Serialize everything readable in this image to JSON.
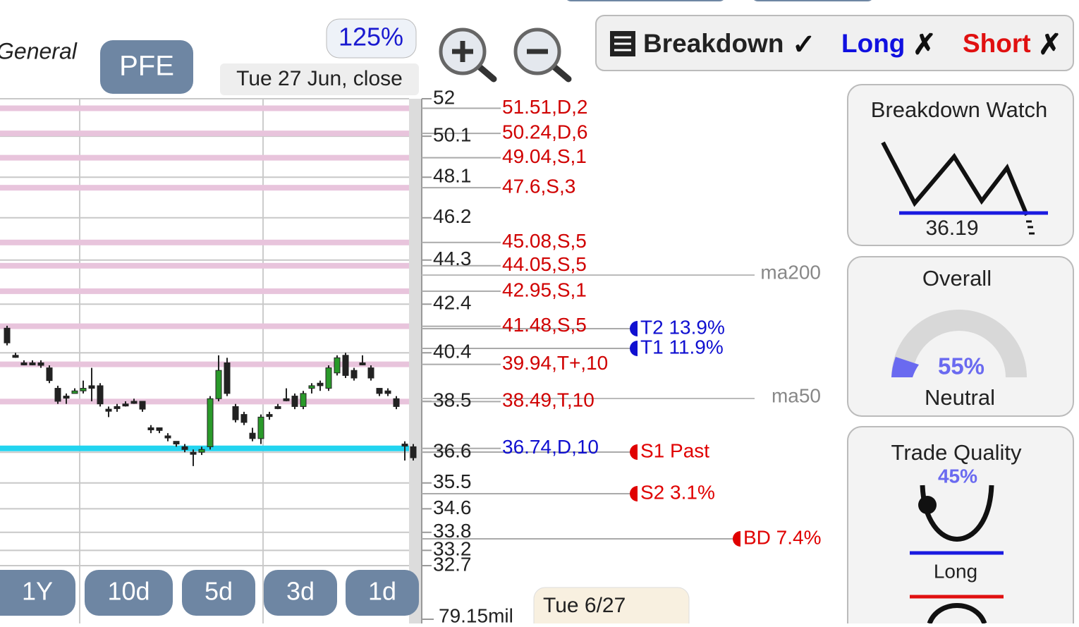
{
  "header": {
    "market": "General",
    "symbol": "PFE",
    "zoom": "125%",
    "date_label": "Tue 27 Jun, close"
  },
  "toggles": [
    {
      "label": "Breakdown",
      "state": "✓",
      "color": "#222222"
    },
    {
      "label": "Long",
      "state": "✗",
      "color": "#1010e0"
    },
    {
      "label": "Short",
      "state": "✗",
      "color": "#e01010"
    }
  ],
  "price_chart": {
    "scale": "log",
    "ylim": [
      32.7,
      52
    ],
    "yticks": [
      52,
      50.1,
      48.1,
      46.2,
      44.3,
      42.4,
      40.4,
      38.5,
      36.6,
      35.5,
      34.6,
      33.8,
      33.2,
      32.7
    ],
    "levels": [
      {
        "label": "51.51,D,2",
        "value": 51.51,
        "color": "#d00000",
        "band": "#e8c4dc"
      },
      {
        "label": "50.24,D,6",
        "value": 50.24,
        "color": "#d00000",
        "band": "#e8c4dc"
      },
      {
        "label": "49.04,S,1",
        "value": 49.04,
        "color": "#d00000",
        "band": "#e8c4dc"
      },
      {
        "label": "47.6,S,3",
        "value": 47.6,
        "color": "#d00000",
        "band": "#e8c4dc"
      },
      {
        "label": "45.08,S,5",
        "value": 45.08,
        "color": "#d00000",
        "band": "#e8c4dc"
      },
      {
        "label": "44.05,S,5",
        "value": 44.05,
        "color": "#d00000",
        "band": "#e8c4dc"
      },
      {
        "label": "42.95,S,1",
        "value": 42.95,
        "color": "#d00000",
        "band": "#e8c4dc"
      },
      {
        "label": "41.48,S,5",
        "value": 41.48,
        "color": "#d00000",
        "band": "#e8c4dc"
      },
      {
        "label": "39.94,T+,10",
        "value": 39.94,
        "color": "#d00000",
        "band": "#e8c4dc"
      },
      {
        "label": "38.49,T,10",
        "value": 38.49,
        "color": "#d00000",
        "band": "#e8c4dc"
      },
      {
        "label": "36.74,D,10",
        "value": 36.74,
        "color": "#1010d0",
        "band": "#22d4f0"
      }
    ],
    "candles": [
      {
        "open": 41.4,
        "high": 41.5,
        "low": 40.7,
        "close": 40.8
      },
      {
        "open": 40.3,
        "high": 40.4,
        "low": 40.2,
        "close": 40.3
      },
      {
        "open": 40.0,
        "high": 40.1,
        "low": 39.9,
        "close": 40.0
      },
      {
        "open": 40.0,
        "high": 40.1,
        "low": 39.9,
        "close": 40.0
      },
      {
        "open": 40.0,
        "high": 40.1,
        "low": 39.8,
        "close": 39.9
      },
      {
        "open": 39.8,
        "high": 39.9,
        "low": 39.2,
        "close": 39.3
      },
      {
        "open": 39.0,
        "high": 39.1,
        "low": 38.4,
        "close": 38.5
      },
      {
        "open": 38.7,
        "high": 38.8,
        "low": 38.4,
        "close": 38.7
      },
      {
        "open": 38.8,
        "high": 39.0,
        "low": 38.8,
        "close": 38.9
      },
      {
        "open": 38.9,
        "high": 39.3,
        "low": 38.8,
        "close": 39.0
      },
      {
        "open": 39.1,
        "high": 39.8,
        "low": 38.5,
        "close": 39.0
      },
      {
        "open": 39.1,
        "high": 39.2,
        "low": 38.3,
        "close": 38.4
      },
      {
        "open": 38.2,
        "high": 38.3,
        "low": 37.9,
        "close": 38.2
      },
      {
        "open": 38.3,
        "high": 38.4,
        "low": 38.1,
        "close": 38.3
      },
      {
        "open": 38.4,
        "high": 38.5,
        "low": 38.3,
        "close": 38.4
      },
      {
        "open": 38.5,
        "high": 38.6,
        "low": 38.4,
        "close": 38.5
      },
      {
        "open": 38.5,
        "high": 38.5,
        "low": 38.1,
        "close": 38.2
      },
      {
        "open": 37.5,
        "high": 37.6,
        "low": 37.3,
        "close": 37.5
      },
      {
        "open": 37.5,
        "high": 37.5,
        "low": 37.3,
        "close": 37.4
      },
      {
        "open": 37.2,
        "high": 37.3,
        "low": 37.0,
        "close": 37.2
      },
      {
        "open": 37.0,
        "high": 37.0,
        "low": 36.8,
        "close": 36.9
      },
      {
        "open": 36.8,
        "high": 36.9,
        "low": 36.6,
        "close": 36.7
      },
      {
        "open": 36.6,
        "high": 36.7,
        "low": 36.1,
        "close": 36.6
      },
      {
        "open": 36.6,
        "high": 36.8,
        "low": 36.5,
        "close": 36.7
      },
      {
        "open": 36.8,
        "high": 38.7,
        "low": 36.7,
        "close": 38.6
      },
      {
        "open": 38.6,
        "high": 40.3,
        "low": 38.5,
        "close": 39.7
      },
      {
        "open": 40.0,
        "high": 40.2,
        "low": 38.7,
        "close": 38.8
      },
      {
        "open": 38.3,
        "high": 38.4,
        "low": 37.7,
        "close": 37.8
      },
      {
        "open": 38.0,
        "high": 38.1,
        "low": 37.6,
        "close": 37.7
      },
      {
        "open": 37.3,
        "high": 37.5,
        "low": 37.0,
        "close": 37.1
      },
      {
        "open": 37.1,
        "high": 38.0,
        "low": 36.9,
        "close": 37.9
      },
      {
        "open": 38.0,
        "high": 38.1,
        "low": 37.8,
        "close": 38.0
      },
      {
        "open": 38.3,
        "high": 38.4,
        "low": 38.2,
        "close": 38.3
      },
      {
        "open": 38.6,
        "high": 39.0,
        "low": 38.5,
        "close": 38.6
      },
      {
        "open": 38.7,
        "high": 38.8,
        "low": 38.2,
        "close": 38.3
      },
      {
        "open": 38.3,
        "high": 38.9,
        "low": 38.2,
        "close": 38.8
      },
      {
        "open": 39.0,
        "high": 39.2,
        "low": 38.8,
        "close": 39.1
      },
      {
        "open": 39.2,
        "high": 39.3,
        "low": 38.9,
        "close": 39.1
      },
      {
        "open": 39.0,
        "high": 39.9,
        "low": 38.9,
        "close": 39.8
      },
      {
        "open": 39.6,
        "high": 40.3,
        "low": 39.5,
        "close": 40.2
      },
      {
        "open": 40.3,
        "high": 40.4,
        "low": 39.4,
        "close": 39.5
      },
      {
        "open": 39.7,
        "high": 39.8,
        "low": 39.3,
        "close": 39.4
      },
      {
        "open": 40.0,
        "high": 40.3,
        "low": 39.9,
        "close": 40.0
      },
      {
        "open": 39.8,
        "high": 39.9,
        "low": 39.3,
        "close": 39.4
      },
      {
        "open": 39.0,
        "high": 39.0,
        "low": 38.7,
        "close": 38.8
      },
      {
        "open": 38.9,
        "high": 39.0,
        "low": 38.7,
        "close": 38.8
      },
      {
        "open": 38.6,
        "high": 38.7,
        "low": 38.2,
        "close": 38.3
      },
      {
        "open": 36.9,
        "high": 37.0,
        "low": 36.3,
        "close": 36.9
      },
      {
        "open": 36.8,
        "high": 36.9,
        "low": 36.3,
        "close": 36.4
      }
    ],
    "ma_labels": [
      "ma200",
      "ma50"
    ],
    "targets": [
      {
        "label": "T2 13.9%",
        "color": "#1010d0"
      },
      {
        "label": "T1 11.9%",
        "color": "#1010d0"
      },
      {
        "label": "S1 Past",
        "color": "#e00000"
      },
      {
        "label": "S2 3.1%",
        "color": "#e00000"
      },
      {
        "label": "BD 7.4%",
        "color": "#e00000"
      }
    ]
  },
  "range_buttons": [
    "1Y",
    "10d",
    "5d",
    "3d",
    "1d"
  ],
  "volume_label": "79.15mil",
  "date_tag": "Tue 6/27",
  "panels": {
    "breakdown_watch": {
      "title": "Breakdown Watch",
      "value": "36.19"
    },
    "overall": {
      "title": "Overall",
      "value": "55%",
      "verdict": "Neutral"
    },
    "trade_quality": {
      "title": "Trade Quality",
      "value": "45%",
      "verdict": "Long"
    }
  }
}
